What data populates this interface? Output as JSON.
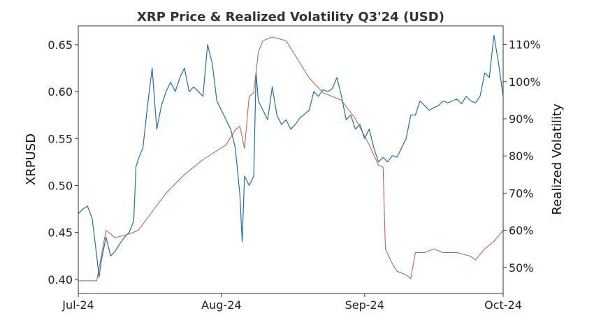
{
  "chart_data": {
    "type": "line",
    "title": "XRP Price & Realized Volatility Q3'24 (USD)",
    "xlabel": "",
    "ylabel": "XRPUSD",
    "ylabel_right": "Realized Volatility",
    "x_ticks": [
      "Jul-24",
      "Aug-24",
      "Sep-24",
      "Oct-24"
    ],
    "x_range": [
      "2024-07-01",
      "2024-10-01"
    ],
    "ylim": [
      0.385,
      0.67
    ],
    "y_ticks": [
      "0.40",
      "0.45",
      "0.50",
      "0.55",
      "0.60",
      "0.65"
    ],
    "y_tick_values": [
      0.4,
      0.45,
      0.5,
      0.55,
      0.6,
      0.65
    ],
    "ylim_right": [
      0.43,
      1.15
    ],
    "y_right_ticks": [
      "50%",
      "60%",
      "70%",
      "80%",
      "90%",
      "100%",
      "110%"
    ],
    "y_right_tick_values": [
      0.5,
      0.6,
      0.7,
      0.8,
      0.9,
      1.0,
      1.1
    ],
    "grid": false,
    "legend": "none",
    "colors": {
      "price": "#1f6eb4",
      "volatility": "#c0573e",
      "axes": "#333333"
    },
    "series": [
      {
        "axis": "left",
        "points": [
          [
            "2024-07-01",
            0.47
          ],
          [
            "2024-07-02",
            0.475
          ],
          [
            "2024-07-03",
            0.478
          ],
          [
            "2024-07-04",
            0.465
          ],
          [
            "2024-07-05",
            0.425
          ],
          [
            "2024-07-05T12:00",
            0.402
          ],
          [
            "2024-07-06",
            0.42
          ],
          [
            "2024-07-07",
            0.445
          ],
          [
            "2024-07-08",
            0.425
          ],
          [
            "2024-07-09",
            0.43
          ],
          [
            "2024-07-10",
            0.438
          ],
          [
            "2024-07-11",
            0.445
          ],
          [
            "2024-07-12",
            0.45
          ],
          [
            "2024-07-13",
            0.462
          ],
          [
            "2024-07-13T12:00",
            0.52
          ],
          [
            "2024-07-14",
            0.528
          ],
          [
            "2024-07-15",
            0.54
          ],
          [
            "2024-07-16",
            0.585
          ],
          [
            "2024-07-17",
            0.625
          ],
          [
            "2024-07-18",
            0.56
          ],
          [
            "2024-07-19",
            0.585
          ],
          [
            "2024-07-20",
            0.6
          ],
          [
            "2024-07-21",
            0.61
          ],
          [
            "2024-07-22",
            0.6
          ],
          [
            "2024-07-23",
            0.615
          ],
          [
            "2024-07-24",
            0.625
          ],
          [
            "2024-07-25",
            0.6
          ],
          [
            "2024-07-26",
            0.605
          ],
          [
            "2024-07-27",
            0.6
          ],
          [
            "2024-07-28",
            0.595
          ],
          [
            "2024-07-29",
            0.65
          ],
          [
            "2024-07-30",
            0.63
          ],
          [
            "2024-07-31",
            0.59
          ],
          [
            "2024-08-02",
            0.57
          ],
          [
            "2024-08-03",
            0.56
          ],
          [
            "2024-08-04",
            0.54
          ],
          [
            "2024-08-05",
            0.49
          ],
          [
            "2024-08-05T12:00",
            0.44
          ],
          [
            "2024-08-06",
            0.51
          ],
          [
            "2024-08-07",
            0.5
          ],
          [
            "2024-08-08",
            0.51
          ],
          [
            "2024-08-08T12:00",
            0.62
          ],
          [
            "2024-08-09",
            0.59
          ],
          [
            "2024-08-10",
            0.58
          ],
          [
            "2024-08-11",
            0.57
          ],
          [
            "2024-08-12",
            0.605
          ],
          [
            "2024-08-13",
            0.575
          ],
          [
            "2024-08-14",
            0.565
          ],
          [
            "2024-08-15",
            0.57
          ],
          [
            "2024-08-16",
            0.56
          ],
          [
            "2024-08-17",
            0.565
          ],
          [
            "2024-08-18",
            0.572
          ],
          [
            "2024-08-20",
            0.58
          ],
          [
            "2024-08-21",
            0.6
          ],
          [
            "2024-08-22",
            0.595
          ],
          [
            "2024-08-23",
            0.602
          ],
          [
            "2024-08-24",
            0.6
          ],
          [
            "2024-08-25",
            0.603
          ],
          [
            "2024-08-26",
            0.615
          ],
          [
            "2024-08-27",
            0.595
          ],
          [
            "2024-08-28",
            0.57
          ],
          [
            "2024-08-29",
            0.575
          ],
          [
            "2024-08-30",
            0.56
          ],
          [
            "2024-08-31",
            0.565
          ],
          [
            "2024-09-01",
            0.55
          ],
          [
            "2024-09-02",
            0.56
          ],
          [
            "2024-09-03",
            0.54
          ],
          [
            "2024-09-04",
            0.525
          ],
          [
            "2024-09-05",
            0.53
          ],
          [
            "2024-09-06",
            0.525
          ],
          [
            "2024-09-07",
            0.532
          ],
          [
            "2024-09-08",
            0.53
          ],
          [
            "2024-09-09",
            0.54
          ],
          [
            "2024-09-10",
            0.55
          ],
          [
            "2024-09-11",
            0.575
          ],
          [
            "2024-09-12",
            0.575
          ],
          [
            "2024-09-13",
            0.59
          ],
          [
            "2024-09-14",
            0.585
          ],
          [
            "2024-09-15",
            0.58
          ],
          [
            "2024-09-16",
            0.583
          ],
          [
            "2024-09-17",
            0.585
          ],
          [
            "2024-09-18",
            0.59
          ],
          [
            "2024-09-19",
            0.588
          ],
          [
            "2024-09-20",
            0.59
          ],
          [
            "2024-09-21",
            0.592
          ],
          [
            "2024-09-22",
            0.587
          ],
          [
            "2024-09-23",
            0.595
          ],
          [
            "2024-09-24",
            0.59
          ],
          [
            "2024-09-25",
            0.588
          ],
          [
            "2024-09-26",
            0.595
          ],
          [
            "2024-09-27",
            0.62
          ],
          [
            "2024-09-28",
            0.615
          ],
          [
            "2024-09-29",
            0.66
          ],
          [
            "2024-09-30",
            0.63
          ],
          [
            "2024-10-01",
            0.595
          ]
        ]
      },
      {
        "axis": "right",
        "points": [
          [
            "2024-07-01",
            0.464
          ],
          [
            "2024-07-05",
            0.464
          ],
          [
            "2024-07-07",
            0.6
          ],
          [
            "2024-07-09",
            0.58
          ],
          [
            "2024-07-12",
            0.59
          ],
          [
            "2024-07-14",
            0.6
          ],
          [
            "2024-07-17",
            0.65
          ],
          [
            "2024-07-20",
            0.7
          ],
          [
            "2024-07-24",
            0.75
          ],
          [
            "2024-07-28",
            0.79
          ],
          [
            "2024-08-02",
            0.83
          ],
          [
            "2024-08-04",
            0.87
          ],
          [
            "2024-08-05",
            0.88
          ],
          [
            "2024-08-06",
            0.82
          ],
          [
            "2024-08-07",
            0.96
          ],
          [
            "2024-08-08",
            0.97
          ],
          [
            "2024-08-09",
            1.08
          ],
          [
            "2024-08-10",
            1.11
          ],
          [
            "2024-08-12",
            1.12
          ],
          [
            "2024-08-15",
            1.11
          ],
          [
            "2024-08-17",
            1.07
          ],
          [
            "2024-08-20",
            1.01
          ],
          [
            "2024-08-23",
            0.97
          ],
          [
            "2024-08-27",
            0.95
          ],
          [
            "2024-08-30",
            0.9
          ],
          [
            "2024-09-02",
            0.83
          ],
          [
            "2024-09-04",
            0.775
          ],
          [
            "2024-09-05",
            0.77
          ],
          [
            "2024-09-05T12:00",
            0.55
          ],
          [
            "2024-09-07",
            0.51
          ],
          [
            "2024-09-08",
            0.49
          ],
          [
            "2024-09-10",
            0.48
          ],
          [
            "2024-09-11",
            0.47
          ],
          [
            "2024-09-12",
            0.54
          ],
          [
            "2024-09-14",
            0.54
          ],
          [
            "2024-09-16",
            0.55
          ],
          [
            "2024-09-18",
            0.54
          ],
          [
            "2024-09-21",
            0.54
          ],
          [
            "2024-09-24",
            0.53
          ],
          [
            "2024-09-25",
            0.52
          ],
          [
            "2024-09-27",
            0.55
          ],
          [
            "2024-09-29",
            0.57
          ],
          [
            "2024-10-01",
            0.6
          ]
        ]
      }
    ]
  }
}
